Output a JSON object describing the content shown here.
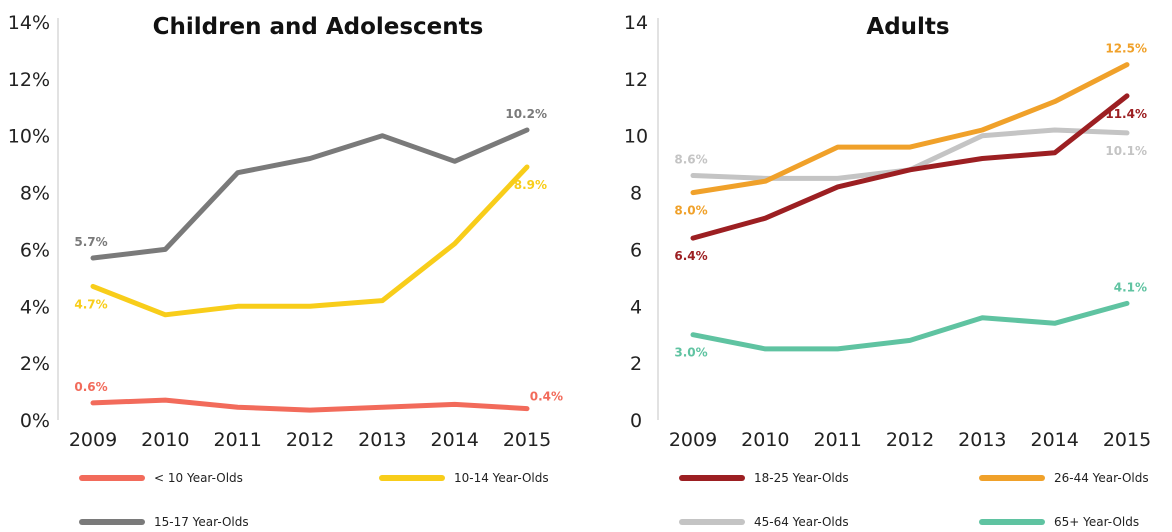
{
  "chart_data": [
    {
      "type": "line",
      "title": "Children and Adolescents",
      "x": [
        "2009",
        "2010",
        "2011",
        "2012",
        "2013",
        "2014",
        "2015"
      ],
      "ylim": [
        0,
        14
      ],
      "yticks": [
        0,
        2,
        4,
        6,
        8,
        10,
        12,
        14
      ],
      "ytick_labels": [
        "0%",
        "2%",
        "4%",
        "6%",
        "8%",
        "10%",
        "12%",
        "14%"
      ],
      "legend_position": "bottom",
      "series": [
        {
          "name": "< 10 Year-Olds",
          "color": "#f26b5b",
          "values": [
            0.6,
            0.7,
            0.45,
            0.35,
            0.45,
            0.55,
            0.4
          ],
          "labels": [
            {
              "index": 0,
              "text": "0.6%",
              "pos": "above"
            },
            {
              "index": 6,
              "text": "0.4%",
              "pos": "right"
            }
          ]
        },
        {
          "name": "10-14 Year-Olds",
          "color": "#f8cd1a",
          "values": [
            4.7,
            3.7,
            4.0,
            4.0,
            4.2,
            6.2,
            8.9
          ],
          "labels": [
            {
              "index": 0,
              "text": "4.7%",
              "pos": "below"
            },
            {
              "index": 6,
              "text": "8.9%",
              "pos": "below"
            }
          ]
        },
        {
          "name": "15-17 Year-Olds",
          "color": "#7a7a7a",
          "values": [
            5.7,
            6.0,
            8.7,
            9.2,
            10.0,
            9.1,
            10.2
          ],
          "labels": [
            {
              "index": 0,
              "text": "5.7%",
              "pos": "above"
            },
            {
              "index": 6,
              "text": "10.2%",
              "pos": "above"
            }
          ]
        }
      ]
    },
    {
      "type": "line",
      "title": "Adults",
      "x": [
        "2009",
        "2010",
        "2011",
        "2012",
        "2013",
        "2014",
        "2015"
      ],
      "ylim": [
        0,
        14
      ],
      "yticks": [
        0,
        2,
        4,
        6,
        8,
        10,
        12,
        14
      ],
      "ytick_labels": [
        "0",
        "2",
        "4",
        "6",
        "8",
        "10",
        "12",
        "14"
      ],
      "legend_position": "bottom",
      "series": [
        {
          "name": "45-64 Year-Olds",
          "color": "#c4c4c4",
          "values": [
            8.6,
            8.5,
            8.5,
            8.8,
            10.0,
            10.2,
            10.1
          ],
          "labels": [
            {
              "index": 0,
              "text": "8.6%",
              "pos": "above"
            },
            {
              "index": 6,
              "text": "10.1%",
              "pos": "below"
            }
          ]
        },
        {
          "name": "18-25 Year-Olds",
          "color": "#9c1f22",
          "values": [
            6.4,
            7.1,
            8.2,
            8.8,
            9.2,
            9.4,
            11.4
          ],
          "labels": [
            {
              "index": 0,
              "text": "6.4%",
              "pos": "below"
            },
            {
              "index": 6,
              "text": "11.4%",
              "pos": "below"
            }
          ]
        },
        {
          "name": "26-44 Year-Olds",
          "color": "#f0a12a",
          "values": [
            8.0,
            8.4,
            9.6,
            9.6,
            10.2,
            11.2,
            12.5
          ],
          "labels": [
            {
              "index": 0,
              "text": "8.0%",
              "pos": "below"
            },
            {
              "index": 6,
              "text": "12.5%",
              "pos": "above"
            }
          ]
        },
        {
          "name": "65+ Year-Olds",
          "color": "#5fc3a1",
          "values": [
            3.0,
            2.5,
            2.5,
            2.8,
            3.6,
            3.4,
            4.1
          ],
          "labels": [
            {
              "index": 0,
              "text": "3.0%",
              "pos": "below"
            },
            {
              "index": 6,
              "text": "4.1%",
              "pos": "above"
            }
          ]
        }
      ],
      "legend_order": [
        "18-25 Year-Olds",
        "26-44 Year-Olds",
        "45-64 Year-Olds",
        "65+ Year-Olds"
      ]
    }
  ]
}
